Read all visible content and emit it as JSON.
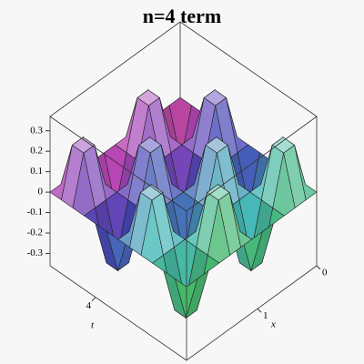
{
  "chart_data": {
    "type": "surface",
    "title": "n=4 term",
    "x_label": "x",
    "t_label": "t",
    "x": [
      0,
      0.1833,
      0.3667,
      0.55,
      0.7333,
      0.9167,
      1.1,
      1.2833,
      1.4667,
      1.65,
      1.8333,
      2.0167,
      2.2
    ],
    "t": [
      0,
      0.5,
      1,
      1.5,
      2,
      2.5,
      3,
      3.5,
      4,
      4.5,
      5,
      5.5,
      6
    ],
    "z": [
      [
        0,
        0,
        0,
        0,
        0,
        0,
        0,
        0,
        0,
        0,
        0,
        0,
        0
      ],
      [
        0,
        0.23,
        0.23,
        0,
        -0.23,
        -0.23,
        0,
        0.23,
        0.23,
        0,
        -0.23,
        -0.23,
        0
      ],
      [
        0,
        0.23,
        0.23,
        0,
        -0.23,
        -0.23,
        0,
        0.23,
        0.23,
        0,
        -0.23,
        -0.23,
        0
      ],
      [
        0,
        0,
        0,
        0,
        0,
        0,
        0,
        0,
        0,
        0,
        0,
        0,
        0
      ],
      [
        0,
        -0.23,
        -0.23,
        0,
        0.23,
        0.23,
        0,
        -0.23,
        -0.23,
        0,
        0.23,
        0.23,
        0
      ],
      [
        0,
        -0.23,
        -0.23,
        0,
        0.23,
        0.23,
        0,
        -0.23,
        -0.23,
        0,
        0.23,
        0.23,
        0
      ],
      [
        0,
        0,
        0,
        0,
        0,
        0,
        0,
        0,
        0,
        0,
        0,
        0,
        0
      ],
      [
        0,
        0.23,
        0.23,
        0,
        -0.23,
        -0.23,
        0,
        0.23,
        0.23,
        0,
        -0.23,
        -0.23,
        0
      ],
      [
        0,
        0.23,
        0.23,
        0,
        -0.23,
        -0.23,
        0,
        0.23,
        0.23,
        0,
        -0.23,
        -0.23,
        0
      ],
      [
        0,
        0,
        0,
        0,
        0,
        0,
        0,
        0,
        0,
        0,
        0,
        0,
        0
      ],
      [
        0,
        -0.23,
        -0.23,
        0,
        0.23,
        0.23,
        0,
        -0.23,
        -0.23,
        0,
        0.23,
        0.23,
        0
      ],
      [
        0,
        -0.23,
        -0.23,
        0,
        0.23,
        0.23,
        0,
        -0.23,
        -0.23,
        0,
        0.23,
        0.23,
        0
      ],
      [
        0,
        0,
        0,
        0,
        0,
        0,
        0,
        0,
        0,
        0,
        0,
        0,
        0
      ]
    ],
    "xlim": [
      0,
      2.2
    ],
    "tlim": [
      0,
      6
    ],
    "zlim": [
      -0.36,
      0.37
    ],
    "xticks": [
      0,
      1
    ],
    "tticks": [
      4
    ],
    "zticks": [
      0.3,
      0.2,
      0.1,
      0,
      -0.1,
      -0.2,
      -0.3
    ]
  }
}
